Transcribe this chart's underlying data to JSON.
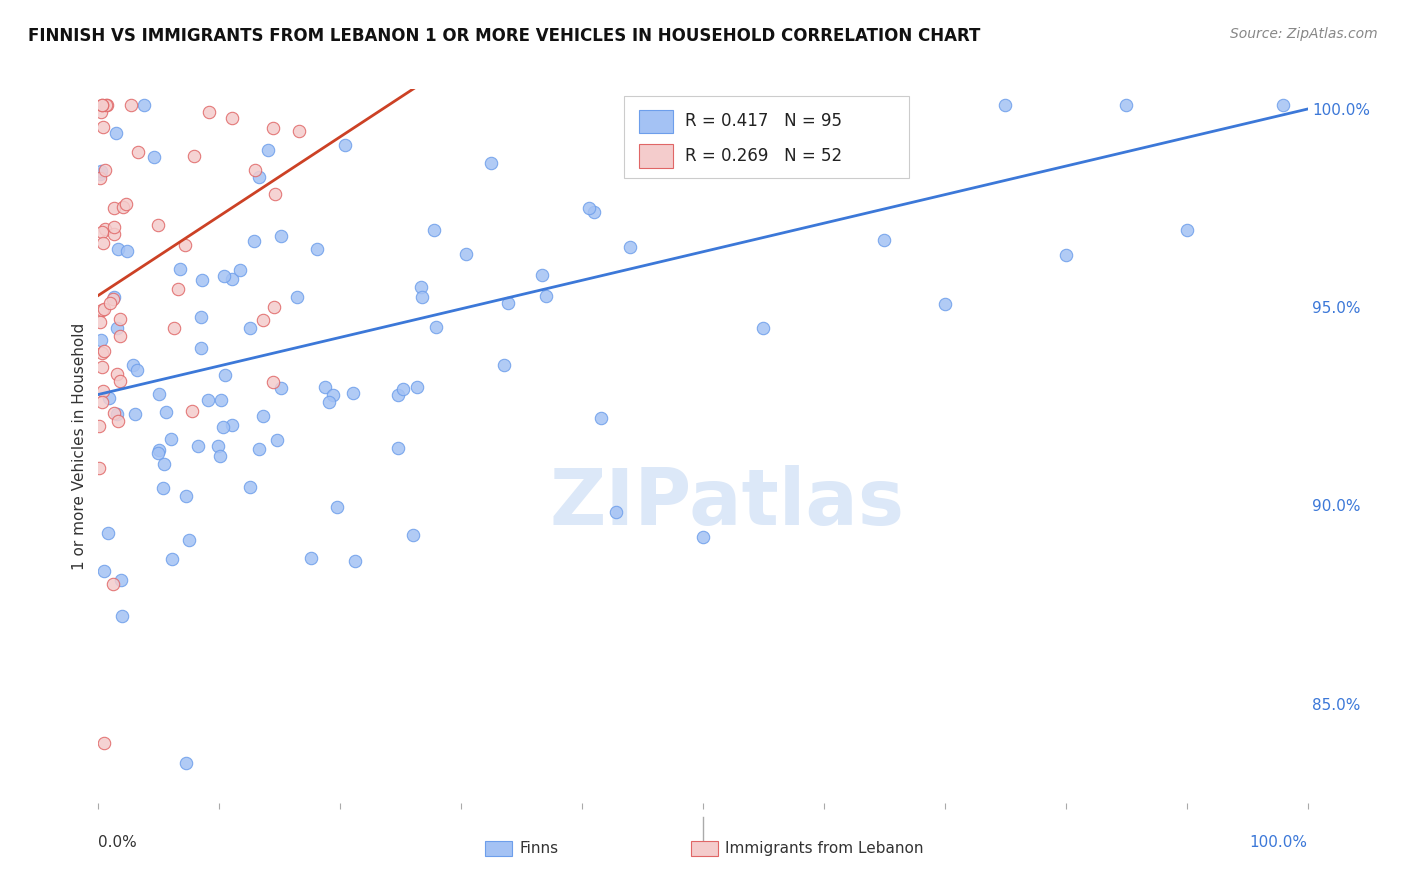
{
  "title": "FINNISH VS IMMIGRANTS FROM LEBANON 1 OR MORE VEHICLES IN HOUSEHOLD CORRELATION CHART",
  "source": "Source: ZipAtlas.com",
  "ylabel": "1 or more Vehicles in Household",
  "legend_label1": "Finns",
  "legend_label2": "Immigrants from Lebanon",
  "R_finns": 0.417,
  "N_finns": 95,
  "R_lebanon": 0.269,
  "N_lebanon": 52,
  "color_finns": "#a4c2f4",
  "color_lebanon": "#f4cccc",
  "line_color_finns": "#3c78d8",
  "line_color_lebanon": "#cc4125",
  "edge_finns": "#6d9eeb",
  "edge_lebanon": "#e06666",
  "background_color": "#ffffff",
  "watermark_text": "ZIPatlas",
  "ylim_low": 0.825,
  "ylim_high": 1.005,
  "xlim_low": 0.0,
  "xlim_high": 1.0,
  "title_fontsize": 12,
  "axis_fontsize": 11,
  "tick_fontsize": 11,
  "source_fontsize": 10,
  "marker_size": 80
}
